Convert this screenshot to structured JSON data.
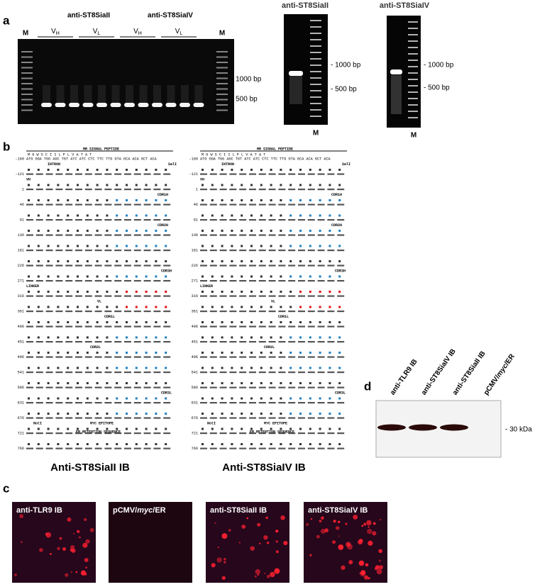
{
  "panel_a": {
    "label": "a",
    "gel_left": {
      "groups": [
        "anti-ST8SiaII",
        "anti-ST8SiaIV"
      ],
      "lanes": [
        {
          "main": "V",
          "sub": "H"
        },
        {
          "main": "V",
          "sub": "L"
        },
        {
          "main": "V",
          "sub": "H"
        },
        {
          "main": "V",
          "sub": "L"
        }
      ],
      "marker": "M",
      "sizes": [
        "- 1000 bp",
        "- 500 bp"
      ]
    },
    "gel_middle": {
      "title": "anti-ST8SiaII",
      "marker": "M",
      "sizes": [
        "- 1000 bp",
        "- 500 bp"
      ]
    },
    "gel_right": {
      "title": "anti-ST8SiaIV",
      "marker": "M",
      "sizes": [
        "- 1000 bp",
        "- 500 bp"
      ]
    }
  },
  "panel_b": {
    "label": "b",
    "columns": [
      {
        "title": "Anti-ST8SiaII IB",
        "positions": [
          "-160",
          "-121",
          "1",
          "46",
          "91",
          "136",
          "181",
          "226",
          "271",
          "316",
          "361",
          "406",
          "451",
          "496",
          "541",
          "586",
          "631",
          "676",
          "721",
          "766"
        ],
        "first_aa": "M  G  W  S  C  I  I  L  F  L  V  A  T  A  T",
        "first_nt": "ATG GGA TGG AGC TGT ATC ATC CTC TTC TTG GTA GCA ACA GCT ACA",
        "annotations": [
          "MR SIGNAL PEPTIDE",
          "SalI",
          "INTRON",
          "VH",
          "CDR1H",
          "CDR2H",
          "CDR3H",
          "LINKER",
          "VL",
          "CDR1L",
          "CDR2L",
          "CDR3L",
          "NotI",
          "MYC EPITOPE",
          "ER RETENTION SEQUENCE"
        ]
      },
      {
        "title": "Anti-ST8SiaIV IB",
        "positions": [
          "-160",
          "-121",
          "1",
          "46",
          "91",
          "136",
          "181",
          "226",
          "271",
          "316",
          "361",
          "406",
          "451",
          "496",
          "541",
          "586",
          "631",
          "676",
          "721",
          "766"
        ],
        "first_aa": "M  G  W  S  C  I  I  L  F  L  V  A  T  A  T",
        "first_nt": "ATG GGA TGG AGC TGT ATC ATC CTC TTC TTG GTA GCA ACA GCT ACA",
        "annotations": [
          "MR SIGNAL PEPTIDE",
          "SalI",
          "INTRON",
          "VH",
          "CDR1H",
          "CDR2H",
          "CDR3H",
          "LINKER",
          "VL",
          "CDR1L",
          "CDR2L",
          "CDR3L",
          "NotI",
          "MYC EPITOPE",
          "ER RETENTION SEQUENCE"
        ]
      }
    ]
  },
  "panel_c": {
    "label": "c",
    "images": [
      [
        "anti-TLR9 IB"
      ],
      [
        "pCMV/",
        "myc",
        "/ER"
      ],
      [
        "anti-ST8SiaII IB"
      ],
      [
        "anti-ST8SiaIV IB"
      ]
    ]
  },
  "panel_d": {
    "label": "d",
    "lanes": [
      [
        "anti-TLR9 IB"
      ],
      [
        "anti-ST8SiaIV IB"
      ],
      [
        "anti-ST8SiaII IB"
      ],
      [
        "pCMV/",
        "myc",
        "/ER"
      ]
    ],
    "size": "- 30 kDa"
  }
}
